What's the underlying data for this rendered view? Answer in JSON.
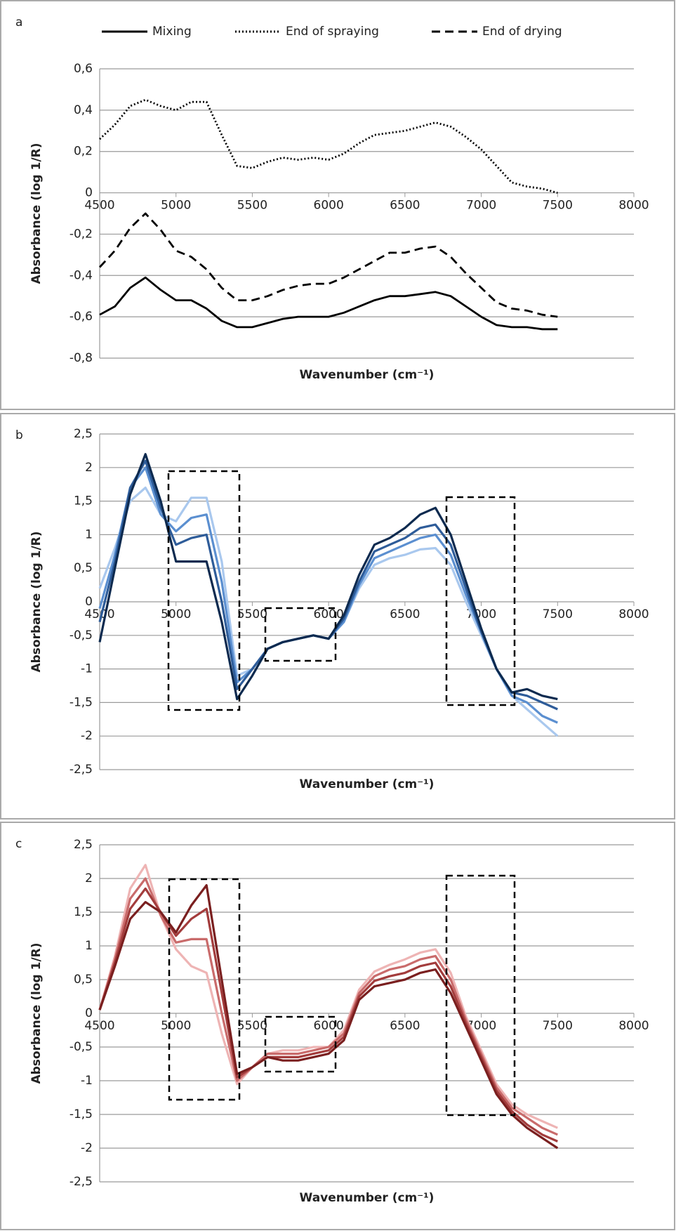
{
  "chart_data": [
    {
      "type": "line",
      "label": "a",
      "x_label": "Wavenumber (cm⁻¹)",
      "y_label": "Absorbance (log 1/R)",
      "x": [
        4500,
        4600,
        4700,
        4800,
        4900,
        5000,
        5100,
        5200,
        5300,
        5400,
        5500,
        5600,
        5700,
        5800,
        5900,
        6000,
        6100,
        6200,
        6300,
        6400,
        6500,
        6600,
        6700,
        6800,
        6900,
        7000,
        7100,
        7200,
        7300,
        7400,
        7500
      ],
      "xlim": [
        4500,
        8000
      ],
      "xticks": [
        4500,
        5000,
        5500,
        6000,
        6500,
        7000,
        7500,
        8000
      ],
      "ylim": [
        -0.8,
        0.6
      ],
      "yticks": [
        {
          "value": -0.8,
          "label": "-0,8"
        },
        {
          "value": -0.6,
          "label": "-0,6"
        },
        {
          "value": -0.4,
          "label": "-0,4"
        },
        {
          "value": -0.2,
          "label": "-0,2"
        },
        0,
        {
          "value": 0.2,
          "label": "0,2"
        },
        {
          "value": 0.4,
          "label": "0,4"
        },
        {
          "value": 0.6,
          "label": "0,6"
        }
      ],
      "grid": true,
      "legend": "top",
      "series": [
        {
          "name": "Mixing",
          "color": "#000000",
          "dash": "solid",
          "values": [
            -0.59,
            -0.55,
            -0.46,
            -0.41,
            -0.47,
            -0.52,
            -0.52,
            -0.56,
            -0.62,
            -0.65,
            -0.65,
            -0.63,
            -0.61,
            -0.6,
            -0.6,
            -0.6,
            -0.58,
            -0.55,
            -0.52,
            -0.5,
            -0.5,
            -0.49,
            -0.48,
            -0.5,
            -0.55,
            -0.6,
            -0.64,
            -0.65,
            -0.65,
            -0.66,
            -0.66
          ]
        },
        {
          "name": "End of spraying",
          "color": "#000000",
          "dash": "dotted",
          "values": [
            0.26,
            0.33,
            0.42,
            0.45,
            0.42,
            0.4,
            0.44,
            0.44,
            0.28,
            0.13,
            0.12,
            0.15,
            0.17,
            0.16,
            0.17,
            0.16,
            0.19,
            0.24,
            0.28,
            0.29,
            0.3,
            0.32,
            0.34,
            0.32,
            0.27,
            0.21,
            0.13,
            0.05,
            0.03,
            0.02,
            0
          ]
        },
        {
          "name": "End of drying",
          "color": "#000000",
          "dash": "dashed",
          "values": [
            -0.36,
            -0.28,
            -0.17,
            -0.1,
            -0.18,
            -0.28,
            -0.31,
            -0.37,
            -0.46,
            -0.52,
            -0.52,
            -0.5,
            -0.47,
            -0.45,
            -0.44,
            -0.44,
            -0.41,
            -0.37,
            -0.33,
            -0.29,
            -0.29,
            -0.27,
            -0.26,
            -0.31,
            -0.39,
            -0.46,
            -0.53,
            -0.56,
            -0.57,
            -0.59,
            -0.6
          ]
        }
      ]
    },
    {
      "type": "line",
      "label": "b",
      "x_label": "Wavenumber (cm⁻¹)",
      "y_label": "Absorbance (log 1/R)",
      "x": [
        4500,
        4600,
        4700,
        4800,
        4900,
        5000,
        5100,
        5200,
        5300,
        5400,
        5500,
        5600,
        5700,
        5800,
        5900,
        6000,
        6100,
        6200,
        6300,
        6400,
        6500,
        6600,
        6700,
        6800,
        6900,
        7000,
        7100,
        7200,
        7300,
        7400,
        7500
      ],
      "xlim": [
        4500,
        8000
      ],
      "xticks": [
        4500,
        5000,
        5500,
        6000,
        6500,
        7000,
        7500,
        8000
      ],
      "ylim": [
        -2.5,
        2.5
      ],
      "yticks": [
        {
          "value": -2.5,
          "label": "-2,5"
        },
        -2,
        {
          "value": -1.5,
          "label": "-1,5"
        },
        -1,
        {
          "value": -0.5,
          "label": "-0,5"
        },
        0,
        {
          "value": 0.5,
          "label": "0,5"
        },
        1,
        {
          "value": 1.5,
          "label": "1,5"
        },
        2,
        {
          "value": 2.5,
          "label": "2,5"
        }
      ],
      "grid": true,
      "series": [
        {
          "color": "#a9c8ee",
          "values": [
            0.2,
            0.8,
            1.5,
            1.7,
            1.3,
            1.2,
            1.55,
            1.55,
            0.6,
            -1.1,
            -1.0,
            -0.7,
            -0.6,
            -0.55,
            -0.5,
            -0.55,
            -0.3,
            0.2,
            0.55,
            0.65,
            0.7,
            0.78,
            0.8,
            0.55,
            0.0,
            -0.5,
            -1.0,
            -1.4,
            -1.6,
            -1.8,
            -2.0
          ]
        },
        {
          "color": "#5b8fd0",
          "values": [
            -0.1,
            0.7,
            1.7,
            2.0,
            1.3,
            1.05,
            1.25,
            1.3,
            0.3,
            -1.2,
            -1.0,
            -0.7,
            -0.6,
            -0.55,
            -0.5,
            -0.55,
            -0.3,
            0.25,
            0.65,
            0.75,
            0.85,
            0.95,
            1.0,
            0.7,
            0.1,
            -0.45,
            -1.0,
            -1.4,
            -1.5,
            -1.7,
            -1.8
          ]
        },
        {
          "color": "#2e5c99",
          "values": [
            -0.3,
            0.6,
            1.7,
            2.1,
            1.4,
            0.85,
            0.95,
            1.0,
            0.0,
            -1.3,
            -1.0,
            -0.7,
            -0.6,
            -0.55,
            -0.5,
            -0.55,
            -0.25,
            0.3,
            0.75,
            0.85,
            0.95,
            1.1,
            1.15,
            0.85,
            0.2,
            -0.45,
            -1.0,
            -1.35,
            -1.4,
            -1.5,
            -1.6
          ]
        },
        {
          "color": "#0d2a4f",
          "values": [
            -0.6,
            0.5,
            1.6,
            2.2,
            1.5,
            0.6,
            0.6,
            0.6,
            -0.3,
            -1.45,
            -1.1,
            -0.7,
            -0.6,
            -0.55,
            -0.5,
            -0.55,
            -0.2,
            0.4,
            0.85,
            0.95,
            1.1,
            1.3,
            1.4,
            1.0,
            0.3,
            -0.4,
            -1.0,
            -1.35,
            -1.3,
            -1.4,
            -1.45
          ]
        }
      ]
    },
    {
      "type": "line",
      "label": "c",
      "x_label": "Wavenumber (cm⁻¹)",
      "y_label": "Absorbance (log 1/R)",
      "x": [
        4500,
        4600,
        4700,
        4800,
        4900,
        5000,
        5100,
        5200,
        5300,
        5400,
        5500,
        5600,
        5700,
        5800,
        5900,
        6000,
        6100,
        6200,
        6300,
        6400,
        6500,
        6600,
        6700,
        6800,
        6900,
        7000,
        7100,
        7200,
        7300,
        7400,
        7500
      ],
      "xlim": [
        4500,
        8000
      ],
      "xticks": [
        4500,
        5000,
        5500,
        6000,
        6500,
        7000,
        7500,
        8000
      ],
      "ylim": [
        -2.5,
        2.5
      ],
      "yticks": [
        {
          "value": -2.5,
          "label": "-2,5"
        },
        -2,
        {
          "value": -1.5,
          "label": "-1,5"
        },
        -1,
        {
          "value": -0.5,
          "label": "-0,5"
        },
        0,
        {
          "value": 0.5,
          "label": "0,5"
        },
        1,
        {
          "value": 1.5,
          "label": "1,5"
        },
        2,
        {
          "value": 2.5,
          "label": "2,5"
        }
      ],
      "grid": true,
      "series": [
        {
          "color": "#eeb4b4",
          "values": [
            0.05,
            0.85,
            1.85,
            2.2,
            1.45,
            0.95,
            0.7,
            0.6,
            -0.3,
            -1.05,
            -0.8,
            -0.6,
            -0.55,
            -0.55,
            -0.5,
            -0.5,
            -0.25,
            0.35,
            0.62,
            0.72,
            0.8,
            0.9,
            0.95,
            0.6,
            -0.05,
            -0.55,
            -1.05,
            -1.35,
            -1.5,
            -1.6,
            -1.7
          ]
        },
        {
          "color": "#c96b6b",
          "values": [
            0.05,
            0.8,
            1.7,
            2.0,
            1.45,
            1.05,
            1.1,
            1.1,
            0.0,
            -1.0,
            -0.8,
            -0.6,
            -0.6,
            -0.6,
            -0.55,
            -0.5,
            -0.3,
            0.3,
            0.55,
            0.65,
            0.7,
            0.8,
            0.85,
            0.5,
            -0.1,
            -0.6,
            -1.1,
            -1.4,
            -1.55,
            -1.7,
            -1.8
          ]
        },
        {
          "color": "#a33c3c",
          "values": [
            0.05,
            0.75,
            1.55,
            1.85,
            1.5,
            1.15,
            1.4,
            1.55,
            0.3,
            -0.95,
            -0.8,
            -0.65,
            -0.65,
            -0.65,
            -0.6,
            -0.55,
            -0.35,
            0.25,
            0.48,
            0.55,
            0.6,
            0.7,
            0.75,
            0.4,
            -0.15,
            -0.65,
            -1.15,
            -1.45,
            -1.65,
            -1.8,
            -1.9
          ]
        },
        {
          "color": "#7a1f1f",
          "values": [
            0.05,
            0.7,
            1.4,
            1.65,
            1.5,
            1.2,
            1.6,
            1.9,
            0.5,
            -0.9,
            -0.8,
            -0.65,
            -0.7,
            -0.7,
            -0.65,
            -0.6,
            -0.4,
            0.2,
            0.4,
            0.45,
            0.5,
            0.6,
            0.65,
            0.3,
            -0.2,
            -0.7,
            -1.2,
            -1.5,
            -1.7,
            -1.85,
            -2.0
          ]
        }
      ]
    }
  ]
}
